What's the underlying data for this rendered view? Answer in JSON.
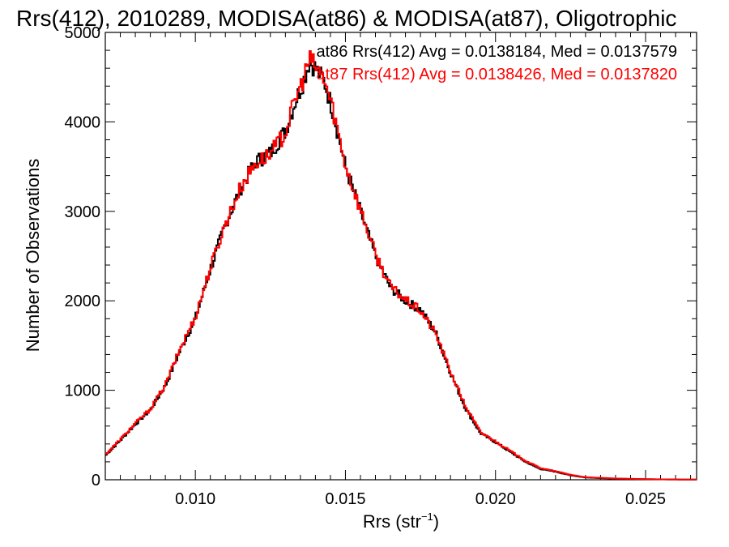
{
  "chart_data": {
    "type": "line",
    "style": "histogram-step",
    "title": "Rrs(412), 2010289, MODISA(at86) & MODISA(at87), Oligotrophic",
    "xlabel": "Rrs (str",
    "xlabel_sup": "−1",
    "xlabel_suffix": ")",
    "ylabel": "Number of Observations",
    "xlim": [
      0.007,
      0.0267
    ],
    "ylim": [
      0,
      5000
    ],
    "x_ticks": [
      {
        "value": 0.01,
        "label": "0.010"
      },
      {
        "value": 0.015,
        "label": "0.015"
      },
      {
        "value": 0.02,
        "label": "0.020"
      },
      {
        "value": 0.025,
        "label": "0.025"
      }
    ],
    "y_ticks": [
      {
        "value": 0,
        "label": "0"
      },
      {
        "value": 1000,
        "label": "1000"
      },
      {
        "value": 2000,
        "label": "2000"
      },
      {
        "value": 3000,
        "label": "3000"
      },
      {
        "value": 4000,
        "label": "4000"
      },
      {
        "value": 5000,
        "label": "5000"
      }
    ],
    "grid": false,
    "legend_position": "top-right",
    "series": [
      {
        "name": "at86",
        "color": "#000000",
        "label": "at86 Rrs(412) Avg = 0.0138184, Med = 0.0137579",
        "x": [
          0.007,
          0.0075,
          0.008,
          0.0085,
          0.009,
          0.0095,
          0.01,
          0.0105,
          0.011,
          0.0115,
          0.012,
          0.0125,
          0.013,
          0.0133,
          0.0136,
          0.0138,
          0.014,
          0.0143,
          0.0146,
          0.015,
          0.0155,
          0.016,
          0.0165,
          0.017,
          0.0175,
          0.018,
          0.0185,
          0.019,
          0.0195,
          0.02,
          0.0205,
          0.021,
          0.0215,
          0.022,
          0.0225,
          0.023,
          0.024,
          0.025,
          0.026,
          0.0267
        ],
        "values": [
          270,
          440,
          620,
          780,
          1050,
          1450,
          1800,
          2350,
          2850,
          3250,
          3550,
          3650,
          3900,
          4200,
          4450,
          4680,
          4600,
          4450,
          4100,
          3500,
          3000,
          2500,
          2150,
          2000,
          1900,
          1650,
          1200,
          800,
          520,
          420,
          310,
          200,
          120,
          90,
          50,
          25,
          12,
          6,
          3,
          2
        ]
      },
      {
        "name": "at87",
        "color": "#ff0000",
        "label": "at87 Rrs(412) Avg = 0.0138426, Med = 0.0137820",
        "x": [
          0.007,
          0.0075,
          0.008,
          0.0085,
          0.009,
          0.0095,
          0.01,
          0.0105,
          0.011,
          0.0115,
          0.012,
          0.0125,
          0.013,
          0.0133,
          0.0136,
          0.0138,
          0.014,
          0.0143,
          0.0146,
          0.015,
          0.0155,
          0.016,
          0.0165,
          0.017,
          0.0175,
          0.018,
          0.0185,
          0.019,
          0.0195,
          0.02,
          0.0205,
          0.021,
          0.0215,
          0.022,
          0.0225,
          0.023,
          0.024,
          0.025,
          0.026,
          0.0267
        ],
        "values": [
          280,
          450,
          630,
          790,
          1060,
          1470,
          1820,
          2370,
          2860,
          3260,
          3540,
          3640,
          3880,
          4220,
          4480,
          4700,
          4620,
          4470,
          4120,
          3520,
          3020,
          2520,
          2160,
          2010,
          1890,
          1640,
          1210,
          820,
          530,
          430,
          320,
          210,
          130,
          95,
          55,
          28,
          14,
          7,
          3,
          2
        ]
      }
    ]
  }
}
